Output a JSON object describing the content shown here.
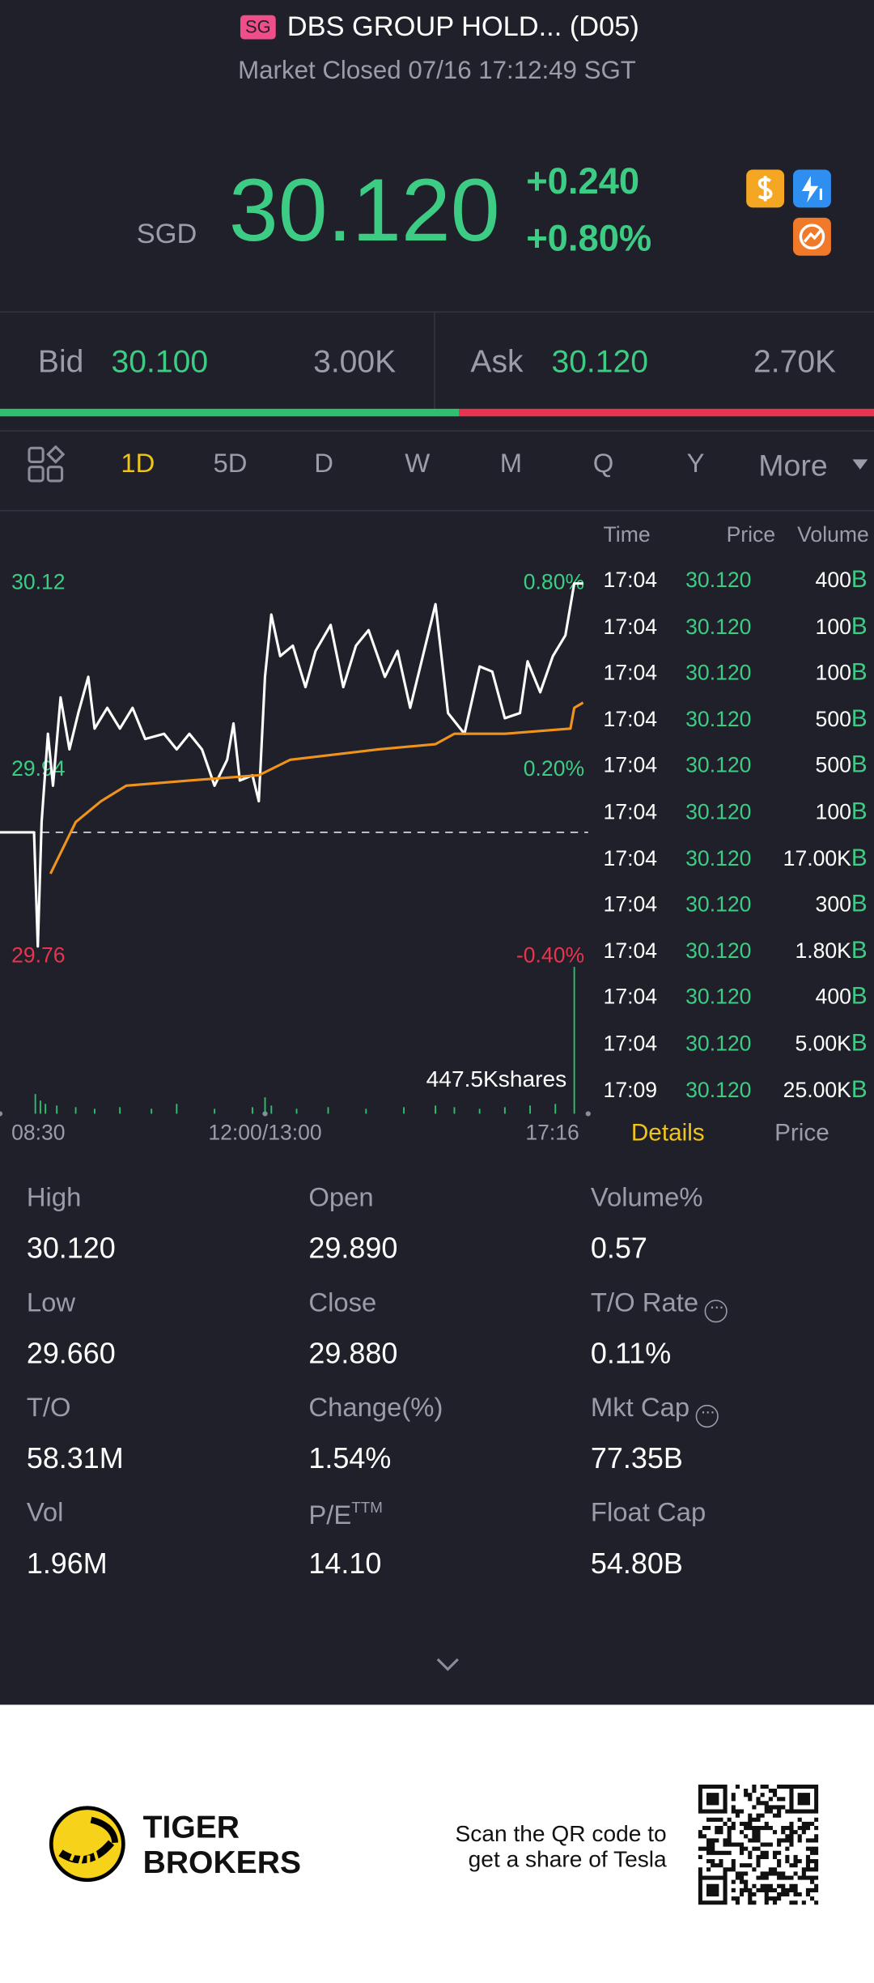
{
  "header": {
    "badge": "SG",
    "title": "DBS GROUP HOLD... (D05)",
    "status": "Market Closed 07/16 17:12:49 SGT"
  },
  "quote": {
    "currency": "SGD",
    "price": "30.120",
    "change": "+0.240",
    "change_percent": "+0.80%"
  },
  "order_book": {
    "bid_label": "Bid",
    "bid_price": "30.100",
    "bid_size": "3.00K",
    "ask_label": "Ask",
    "ask_price": "30.120",
    "ask_size": "2.70K"
  },
  "tabs": {
    "items": [
      "1D",
      "5D",
      "D",
      "W",
      "M",
      "Q",
      "Y",
      "More"
    ],
    "active": 0
  },
  "chart_data": {
    "type": "line",
    "xlim": [
      0,
      466
    ],
    "xticks": [
      {
        "value": 0,
        "label": "08:30"
      },
      {
        "value": 210,
        "label": "12:00/13:00"
      },
      {
        "value": 466,
        "label": "17:16"
      }
    ],
    "ylim": [
      29.76,
      30.12
    ],
    "yticks": [
      30.12,
      29.94,
      29.76
    ],
    "y2lim": [
      -0.4,
      0.8
    ],
    "y2ticks": [
      {
        "value": 0.8,
        "label": "0.80%"
      },
      {
        "value": 0.2,
        "label": "0.20%"
      },
      {
        "value": -0.4,
        "label": "-0.40%"
      }
    ],
    "reference_line": 29.88,
    "series": [
      {
        "color": "#ffffff",
        "x": [
          0,
          27,
          30,
          33,
          38,
          42,
          48,
          55,
          62,
          70,
          75,
          85,
          95,
          105,
          115,
          130,
          140,
          150,
          160,
          170,
          180,
          185,
          190,
          200,
          205,
          210,
          215,
          222,
          232,
          242,
          250,
          262,
          272,
          282,
          292,
          305,
          315,
          325,
          335,
          345,
          355,
          368,
          380,
          390,
          400,
          412,
          418,
          428,
          438,
          448,
          455,
          462
        ],
        "values": [
          29.88,
          29.88,
          29.77,
          29.89,
          29.975,
          29.925,
          30.01,
          29.96,
          29.995,
          30.03,
          29.98,
          30.0,
          29.98,
          30.0,
          29.97,
          29.975,
          29.96,
          29.975,
          29.96,
          29.925,
          29.95,
          29.985,
          29.93,
          29.935,
          29.91,
          30.03,
          30.09,
          30.05,
          30.06,
          30.02,
          30.055,
          30.08,
          30.02,
          30.06,
          30.075,
          30.03,
          30.055,
          30.0,
          30.05,
          30.1,
          29.995,
          29.975,
          30.04,
          30.035,
          29.99,
          29.995,
          30.045,
          30.015,
          30.05,
          30.07,
          30.12,
          30.12
        ]
      },
      {
        "color": "#f0931c",
        "x": [
          40,
          60,
          80,
          100,
          150,
          205,
          230,
          300,
          345,
          360,
          400,
          452,
          455,
          462
        ],
        "values": [
          29.84,
          29.89,
          29.91,
          29.925,
          29.93,
          29.935,
          29.95,
          29.96,
          29.965,
          29.975,
          29.975,
          29.98,
          30.0,
          30.005
        ]
      }
    ],
    "volume": {
      "label": "447.5Kshares",
      "color": "#2fbf71",
      "ylim": [
        0,
        447500
      ],
      "x": [
        28,
        32,
        36,
        45,
        60,
        75,
        95,
        120,
        140,
        170,
        200,
        210,
        215,
        235,
        260,
        290,
        320,
        345,
        360,
        380,
        400,
        420,
        440,
        455
      ],
      "values": [
        60000,
        40000,
        30000,
        25000,
        20000,
        15000,
        20000,
        15000,
        30000,
        15000,
        20000,
        50000,
        25000,
        15000,
        20000,
        15000,
        20000,
        25000,
        20000,
        15000,
        20000,
        25000,
        30000,
        447500
      ]
    }
  },
  "trades": {
    "columns": [
      "Time",
      "Price",
      "Volume"
    ],
    "rows": [
      {
        "time": "17:04",
        "price": "30.120",
        "volume": "400",
        "side": "B"
      },
      {
        "time": "17:04",
        "price": "30.120",
        "volume": "100",
        "side": "B"
      },
      {
        "time": "17:04",
        "price": "30.120",
        "volume": "100",
        "side": "B"
      },
      {
        "time": "17:04",
        "price": "30.120",
        "volume": "500",
        "side": "B"
      },
      {
        "time": "17:04",
        "price": "30.120",
        "volume": "500",
        "side": "B"
      },
      {
        "time": "17:04",
        "price": "30.120",
        "volume": "100",
        "side": "B"
      },
      {
        "time": "17:04",
        "price": "30.120",
        "volume": "17.00K",
        "side": "B"
      },
      {
        "time": "17:04",
        "price": "30.120",
        "volume": "300",
        "side": "B"
      },
      {
        "time": "17:04",
        "price": "30.120",
        "volume": "1.80K",
        "side": "B"
      },
      {
        "time": "17:04",
        "price": "30.120",
        "volume": "400",
        "side": "B"
      },
      {
        "time": "17:04",
        "price": "30.120",
        "volume": "5.00K",
        "side": "B"
      },
      {
        "time": "17:09",
        "price": "30.120",
        "volume": "25.00K",
        "side": "B"
      }
    ]
  },
  "bottom_tabs": {
    "items": [
      "Details",
      "Price"
    ],
    "active": 0
  },
  "stats": [
    {
      "label": "High",
      "value": "30.120"
    },
    {
      "label": "Open",
      "value": "29.890"
    },
    {
      "label": "Volume%",
      "value": "0.57"
    },
    {
      "label": "Low",
      "value": "29.660"
    },
    {
      "label": "Close",
      "value": "29.880"
    },
    {
      "label": "T/O Rate",
      "value": "0.11%",
      "info": true
    },
    {
      "label": "T/O",
      "value": "58.31M"
    },
    {
      "label": "Change(%)",
      "value": "1.54%"
    },
    {
      "label": "Mkt Cap",
      "value": "77.35B",
      "info": true
    },
    {
      "label": "Vol",
      "value": "1.96M"
    },
    {
      "label": "P/E",
      "label_sup": "TTM",
      "value": "14.10"
    },
    {
      "label": "Float Cap",
      "value": "54.80B"
    }
  ],
  "footer": {
    "brand": [
      "TIGER",
      "BROKERS"
    ],
    "promo": [
      "Scan the QR code to",
      "get a share of Tesla"
    ]
  }
}
